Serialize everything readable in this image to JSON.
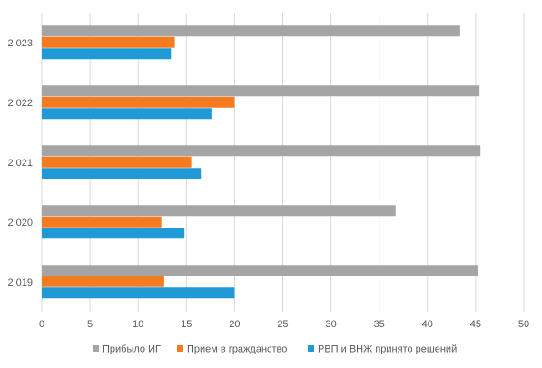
{
  "chart_data": {
    "type": "bar",
    "orientation": "horizontal",
    "categories": [
      "2 019",
      "2 020",
      "2 021",
      "2 022",
      "2 023"
    ],
    "series": [
      {
        "name": "РВП и ВНЖ принято решений",
        "color": "#1F9AD6",
        "values": [
          20,
          14.8,
          16.5,
          17.6,
          13.4
        ]
      },
      {
        "name": "Прием в гражданство",
        "color": "#F47B20",
        "values": [
          12.7,
          12.4,
          15.5,
          20,
          13.8
        ]
      },
      {
        "name": "Прибыло ИГ",
        "color": "#A5A5A5",
        "values": [
          45.2,
          36.7,
          45.5,
          45.4,
          43.4
        ]
      }
    ],
    "xlim": [
      0,
      50
    ],
    "xticks": [
      "0",
      "5",
      "10",
      "15",
      "20",
      "25",
      "30",
      "35",
      "40",
      "45",
      "50"
    ],
    "grid": "vertical",
    "legend_position": "bottom",
    "legend_order": [
      "Прибыло ИГ",
      "Прием в гражданство",
      "РВП и ВНЖ принято решений"
    ]
  }
}
